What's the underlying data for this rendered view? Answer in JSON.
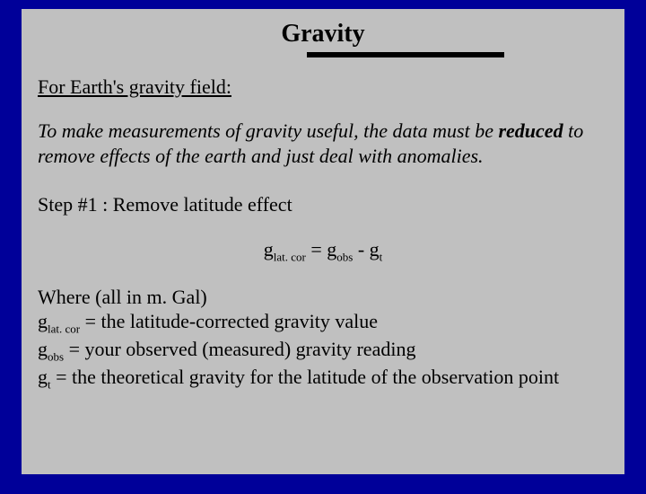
{
  "colors": {
    "background": "#000099",
    "slide_bg": "#c0c0c0",
    "text": "#000000",
    "rule": "#000000"
  },
  "typography": {
    "family": "Times New Roman",
    "title_size_pt": 28,
    "body_size_pt": 22,
    "sub_size_pt": 13
  },
  "title": "Gravity",
  "subheading": "For Earth's gravity field:",
  "intro": {
    "pre": "To make measurements of gravity useful, the data must be ",
    "em": "reduced",
    "post": " to remove effects of the earth and just deal with anomalies."
  },
  "step": "Step #1 : Remove latitude effect",
  "equation": {
    "lhs_base": "g",
    "lhs_sub": "lat. cor",
    "eq": "  =  ",
    "r1_base": "g",
    "r1_sub": "obs",
    "minus": "  -  ",
    "r2_base": "g",
    "r2_sub": "t"
  },
  "where_head": "Where (all in m. Gal)",
  "defs": {
    "d1_base": "g",
    "d1_sub": "lat. cor",
    "d1_rest": " = the latitude-corrected gravity value",
    "d2_base": "g",
    "d2_sub": "obs",
    "d2_rest": " =  your observed (measured) gravity reading",
    "d3_base": "g",
    "d3_sub": "t",
    "d3_rest": " =  the theoretical gravity for the latitude of the observation point"
  }
}
